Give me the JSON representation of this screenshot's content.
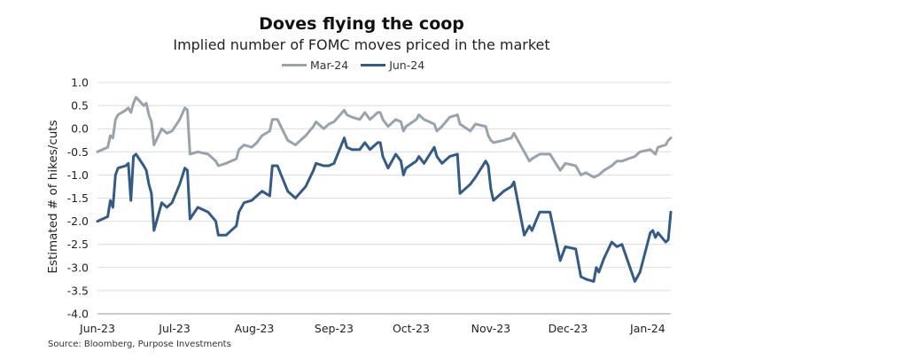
{
  "title": "Doves flying the coop",
  "subtitle": "Implied number of FOMC moves priced in the market",
  "source": "Source: Bloomberg, Purpose Investments",
  "chart_data": {
    "type": "line",
    "title": "Doves flying the coop",
    "subtitle": "Implied number of FOMC moves priced in the market",
    "xlabel": "",
    "ylabel": "Estimated # of hikes/cuts",
    "ylim": [
      -4.0,
      1.0
    ],
    "yticks": [
      "1.0",
      "0.5",
      "0.0",
      "-0.5",
      "-1.0",
      "-1.5",
      "-2.0",
      "-2.5",
      "-3.0",
      "-3.5",
      "-4.0"
    ],
    "xticks": [
      "Jun-23",
      "Jul-23",
      "Aug-23",
      "Sep-23",
      "Oct-23",
      "Nov-23",
      "Dec-23",
      "Jan-24"
    ],
    "xlim": [
      "2023-06-01",
      "2024-01-10"
    ],
    "grid": "horizontal",
    "legend_position": "top",
    "series": [
      {
        "name": "Mar-24",
        "color": "#9aa3ab",
        "points": [
          [
            "2023-06-01",
            -0.5
          ],
          [
            "2023-06-05",
            -0.4
          ],
          [
            "2023-06-06",
            -0.15
          ],
          [
            "2023-06-07",
            -0.2
          ],
          [
            "2023-06-08",
            0.2
          ],
          [
            "2023-06-09",
            0.3
          ],
          [
            "2023-06-12",
            0.4
          ],
          [
            "2023-06-13",
            0.45
          ],
          [
            "2023-06-14",
            0.35
          ],
          [
            "2023-06-15",
            0.55
          ],
          [
            "2023-06-16",
            0.68
          ],
          [
            "2023-06-19",
            0.5
          ],
          [
            "2023-06-20",
            0.55
          ],
          [
            "2023-06-21",
            0.3
          ],
          [
            "2023-06-22",
            0.15
          ],
          [
            "2023-06-23",
            -0.35
          ],
          [
            "2023-06-26",
            0.0
          ],
          [
            "2023-06-28",
            -0.1
          ],
          [
            "2023-06-30",
            -0.05
          ],
          [
            "2023-07-03",
            0.2
          ],
          [
            "2023-07-05",
            0.45
          ],
          [
            "2023-07-06",
            0.4
          ],
          [
            "2023-07-07",
            -0.55
          ],
          [
            "2023-07-10",
            -0.5
          ],
          [
            "2023-07-14",
            -0.55
          ],
          [
            "2023-07-17",
            -0.7
          ],
          [
            "2023-07-18",
            -0.8
          ],
          [
            "2023-07-21",
            -0.75
          ],
          [
            "2023-07-25",
            -0.65
          ],
          [
            "2023-07-26",
            -0.45
          ],
          [
            "2023-07-28",
            -0.35
          ],
          [
            "2023-07-31",
            -0.4
          ],
          [
            "2023-08-02",
            -0.3
          ],
          [
            "2023-08-04",
            -0.15
          ],
          [
            "2023-08-07",
            -0.05
          ],
          [
            "2023-08-08",
            0.2
          ],
          [
            "2023-08-10",
            0.2
          ],
          [
            "2023-08-14",
            -0.25
          ],
          [
            "2023-08-17",
            -0.35
          ],
          [
            "2023-08-21",
            -0.15
          ],
          [
            "2023-08-24",
            0.05
          ],
          [
            "2023-08-25",
            0.15
          ],
          [
            "2023-08-28",
            0.0
          ],
          [
            "2023-08-30",
            0.1
          ],
          [
            "2023-09-01",
            0.15
          ],
          [
            "2023-09-05",
            0.4
          ],
          [
            "2023-09-06",
            0.3
          ],
          [
            "2023-09-08",
            0.25
          ],
          [
            "2023-09-11",
            0.2
          ],
          [
            "2023-09-13",
            0.35
          ],
          [
            "2023-09-15",
            0.2
          ],
          [
            "2023-09-18",
            0.35
          ],
          [
            "2023-09-19",
            0.35
          ],
          [
            "2023-09-20",
            0.2
          ],
          [
            "2023-09-22",
            0.05
          ],
          [
            "2023-09-25",
            0.2
          ],
          [
            "2023-09-27",
            0.15
          ],
          [
            "2023-09-28",
            -0.05
          ],
          [
            "2023-09-29",
            0.05
          ],
          [
            "2023-10-03",
            0.2
          ],
          [
            "2023-10-04",
            0.3
          ],
          [
            "2023-10-06",
            0.2
          ],
          [
            "2023-10-10",
            0.1
          ],
          [
            "2023-10-11",
            -0.05
          ],
          [
            "2023-10-13",
            0.05
          ],
          [
            "2023-10-16",
            0.25
          ],
          [
            "2023-10-19",
            0.3
          ],
          [
            "2023-10-20",
            0.1
          ],
          [
            "2023-10-24",
            -0.05
          ],
          [
            "2023-10-26",
            0.1
          ],
          [
            "2023-10-30",
            0.05
          ],
          [
            "2023-10-31",
            -0.15
          ],
          [
            "2023-11-01",
            -0.25
          ],
          [
            "2023-11-02",
            -0.3
          ],
          [
            "2023-11-06",
            -0.25
          ],
          [
            "2023-11-09",
            -0.2
          ],
          [
            "2023-11-10",
            -0.1
          ],
          [
            "2023-11-14",
            -0.5
          ],
          [
            "2023-11-16",
            -0.7
          ],
          [
            "2023-11-17",
            -0.65
          ],
          [
            "2023-11-20",
            -0.55
          ],
          [
            "2023-11-24",
            -0.55
          ],
          [
            "2023-11-28",
            -0.9
          ],
          [
            "2023-11-30",
            -0.75
          ],
          [
            "2023-12-04",
            -0.8
          ],
          [
            "2023-12-06",
            -1.0
          ],
          [
            "2023-12-08",
            -0.95
          ],
          [
            "2023-12-11",
            -1.05
          ],
          [
            "2023-12-13",
            -1.0
          ],
          [
            "2023-12-15",
            -0.9
          ],
          [
            "2023-12-18",
            -0.8
          ],
          [
            "2023-12-20",
            -0.7
          ],
          [
            "2023-12-22",
            -0.7
          ],
          [
            "2023-12-27",
            -0.6
          ],
          [
            "2023-12-29",
            -0.5
          ],
          [
            "2024-01-02",
            -0.45
          ],
          [
            "2024-01-03",
            -0.5
          ],
          [
            "2024-01-04",
            -0.55
          ],
          [
            "2024-01-05",
            -0.4
          ],
          [
            "2024-01-08",
            -0.35
          ],
          [
            "2024-01-09",
            -0.25
          ],
          [
            "2024-01-10",
            -0.2
          ]
        ]
      },
      {
        "name": "Jun-24",
        "color": "#335b88",
        "points": [
          [
            "2023-06-01",
            -2.0
          ],
          [
            "2023-06-05",
            -1.9
          ],
          [
            "2023-06-06",
            -1.55
          ],
          [
            "2023-06-07",
            -1.7
          ],
          [
            "2023-06-08",
            -1.0
          ],
          [
            "2023-06-09",
            -0.85
          ],
          [
            "2023-06-12",
            -0.8
          ],
          [
            "2023-06-13",
            -0.75
          ],
          [
            "2023-06-14",
            -1.55
          ],
          [
            "2023-06-15",
            -0.6
          ],
          [
            "2023-06-16",
            -0.55
          ],
          [
            "2023-06-19",
            -0.8
          ],
          [
            "2023-06-20",
            -0.9
          ],
          [
            "2023-06-21",
            -1.2
          ],
          [
            "2023-06-22",
            -1.4
          ],
          [
            "2023-06-23",
            -2.2
          ],
          [
            "2023-06-26",
            -1.6
          ],
          [
            "2023-06-28",
            -1.7
          ],
          [
            "2023-06-30",
            -1.6
          ],
          [
            "2023-07-03",
            -1.2
          ],
          [
            "2023-07-05",
            -0.85
          ],
          [
            "2023-07-06",
            -0.9
          ],
          [
            "2023-07-07",
            -1.95
          ],
          [
            "2023-07-10",
            -1.7
          ],
          [
            "2023-07-14",
            -1.8
          ],
          [
            "2023-07-17",
            -2.0
          ],
          [
            "2023-07-18",
            -2.3
          ],
          [
            "2023-07-21",
            -2.3
          ],
          [
            "2023-07-25",
            -2.1
          ],
          [
            "2023-07-26",
            -1.8
          ],
          [
            "2023-07-28",
            -1.6
          ],
          [
            "2023-07-31",
            -1.55
          ],
          [
            "2023-08-02",
            -1.45
          ],
          [
            "2023-08-04",
            -1.35
          ],
          [
            "2023-08-07",
            -1.45
          ],
          [
            "2023-08-08",
            -0.8
          ],
          [
            "2023-08-10",
            -0.8
          ],
          [
            "2023-08-14",
            -1.35
          ],
          [
            "2023-08-17",
            -1.5
          ],
          [
            "2023-08-21",
            -1.25
          ],
          [
            "2023-08-24",
            -0.9
          ],
          [
            "2023-08-25",
            -0.75
          ],
          [
            "2023-08-28",
            -0.8
          ],
          [
            "2023-08-30",
            -0.8
          ],
          [
            "2023-09-01",
            -0.75
          ],
          [
            "2023-09-05",
            -0.2
          ],
          [
            "2023-09-06",
            -0.4
          ],
          [
            "2023-09-08",
            -0.45
          ],
          [
            "2023-09-11",
            -0.45
          ],
          [
            "2023-09-13",
            -0.3
          ],
          [
            "2023-09-15",
            -0.45
          ],
          [
            "2023-09-18",
            -0.3
          ],
          [
            "2023-09-19",
            -0.3
          ],
          [
            "2023-09-20",
            -0.6
          ],
          [
            "2023-09-22",
            -0.85
          ],
          [
            "2023-09-25",
            -0.55
          ],
          [
            "2023-09-27",
            -0.7
          ],
          [
            "2023-09-28",
            -1.0
          ],
          [
            "2023-09-29",
            -0.85
          ],
          [
            "2023-10-03",
            -0.7
          ],
          [
            "2023-10-04",
            -0.6
          ],
          [
            "2023-10-06",
            -0.75
          ],
          [
            "2023-10-10",
            -0.4
          ],
          [
            "2023-10-11",
            -0.6
          ],
          [
            "2023-10-13",
            -0.75
          ],
          [
            "2023-10-16",
            -0.6
          ],
          [
            "2023-10-19",
            -0.55
          ],
          [
            "2023-10-20",
            -1.4
          ],
          [
            "2023-10-24",
            -1.2
          ],
          [
            "2023-10-26",
            -1.05
          ],
          [
            "2023-10-30",
            -0.7
          ],
          [
            "2023-10-31",
            -0.8
          ],
          [
            "2023-11-01",
            -1.3
          ],
          [
            "2023-11-02",
            -1.55
          ],
          [
            "2023-11-06",
            -1.35
          ],
          [
            "2023-11-09",
            -1.25
          ],
          [
            "2023-11-10",
            -1.15
          ],
          [
            "2023-11-14",
            -2.3
          ],
          [
            "2023-11-16",
            -2.1
          ],
          [
            "2023-11-17",
            -2.2
          ],
          [
            "2023-11-20",
            -1.8
          ],
          [
            "2023-11-24",
            -1.8
          ],
          [
            "2023-11-28",
            -2.85
          ],
          [
            "2023-11-30",
            -2.55
          ],
          [
            "2023-12-04",
            -2.6
          ],
          [
            "2023-12-06",
            -3.2
          ],
          [
            "2023-12-08",
            -3.25
          ],
          [
            "2023-12-11",
            -3.3
          ],
          [
            "2023-12-12",
            -3.0
          ],
          [
            "2023-12-13",
            -3.1
          ],
          [
            "2023-12-15",
            -2.8
          ],
          [
            "2023-12-18",
            -2.45
          ],
          [
            "2023-12-20",
            -2.55
          ],
          [
            "2023-12-22",
            -2.5
          ],
          [
            "2023-12-27",
            -3.3
          ],
          [
            "2023-12-29",
            -3.1
          ],
          [
            "2024-01-02",
            -2.25
          ],
          [
            "2024-01-03",
            -2.2
          ],
          [
            "2024-01-04",
            -2.35
          ],
          [
            "2024-01-05",
            -2.25
          ],
          [
            "2024-01-08",
            -2.45
          ],
          [
            "2024-01-09",
            -2.4
          ],
          [
            "2024-01-10",
            -1.8
          ]
        ]
      }
    ]
  }
}
